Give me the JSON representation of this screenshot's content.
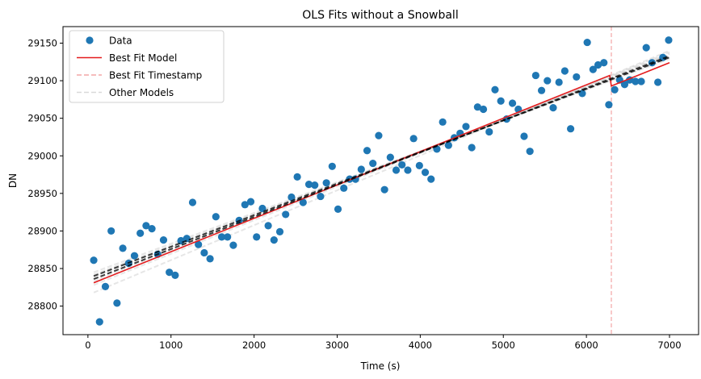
{
  "chart_data": {
    "type": "scatter",
    "title": "OLS Fits without a Snowball",
    "xlabel": "Time (s)",
    "ylabel": "DN",
    "xlim": [
      -300,
      7350
    ],
    "ylim": [
      28762,
      29172
    ],
    "xticks": [
      0,
      1000,
      2000,
      3000,
      4000,
      5000,
      6000,
      7000
    ],
    "yticks": [
      28800,
      28850,
      28900,
      28950,
      29000,
      29050,
      29100,
      29150
    ],
    "grid": false,
    "legend_position": "top-left",
    "legend": [
      {
        "label": "Data",
        "style": "marker",
        "color": "#1f77b4"
      },
      {
        "label": "Best Fit Model",
        "style": "solid",
        "color": "#e41a1c"
      },
      {
        "label": "Best Fit Timestamp",
        "style": "dashed",
        "color": "#f4a6a6"
      },
      {
        "label": "Other Models",
        "style": "dashed",
        "color": "#d9d9d9"
      }
    ],
    "series": [
      {
        "name": "Data",
        "kind": "scatter",
        "color": "#1f77b4",
        "points": [
          [
            70,
            28861
          ],
          [
            140,
            28779
          ],
          [
            210,
            28826
          ],
          [
            280,
            28900
          ],
          [
            350,
            28804
          ],
          [
            420,
            28877
          ],
          [
            490,
            28857
          ],
          [
            560,
            28867
          ],
          [
            630,
            28897
          ],
          [
            700,
            28907
          ],
          [
            770,
            28903
          ],
          [
            840,
            28869
          ],
          [
            910,
            28888
          ],
          [
            980,
            28845
          ],
          [
            1050,
            28841
          ],
          [
            1120,
            28887
          ],
          [
            1190,
            28890
          ],
          [
            1260,
            28938
          ],
          [
            1330,
            28882
          ],
          [
            1400,
            28871
          ],
          [
            1470,
            28863
          ],
          [
            1540,
            28919
          ],
          [
            1610,
            28892
          ],
          [
            1680,
            28892
          ],
          [
            1750,
            28881
          ],
          [
            1820,
            28914
          ],
          [
            1890,
            28935
          ],
          [
            1960,
            28939
          ],
          [
            2030,
            28892
          ],
          [
            2100,
            28930
          ],
          [
            2170,
            28907
          ],
          [
            2240,
            28888
          ],
          [
            2310,
            28899
          ],
          [
            2380,
            28922
          ],
          [
            2450,
            28945
          ],
          [
            2520,
            28972
          ],
          [
            2590,
            28938
          ],
          [
            2660,
            28962
          ],
          [
            2730,
            28961
          ],
          [
            2800,
            28946
          ],
          [
            2870,
            28964
          ],
          [
            2940,
            28986
          ],
          [
            3010,
            28929
          ],
          [
            3080,
            28957
          ],
          [
            3150,
            28969
          ],
          [
            3220,
            28969
          ],
          [
            3290,
            28982
          ],
          [
            3360,
            29007
          ],
          [
            3430,
            28990
          ],
          [
            3500,
            29027
          ],
          [
            3570,
            28955
          ],
          [
            3640,
            28998
          ],
          [
            3710,
            28981
          ],
          [
            3780,
            28988
          ],
          [
            3850,
            28981
          ],
          [
            3920,
            29023
          ],
          [
            3990,
            28987
          ],
          [
            4060,
            28978
          ],
          [
            4130,
            28969
          ],
          [
            4200,
            29009
          ],
          [
            4270,
            29045
          ],
          [
            4340,
            29014
          ],
          [
            4410,
            29024
          ],
          [
            4480,
            29030
          ],
          [
            4550,
            29039
          ],
          [
            4620,
            29011
          ],
          [
            4690,
            29065
          ],
          [
            4760,
            29062
          ],
          [
            4830,
            29032
          ],
          [
            4900,
            29088
          ],
          [
            4970,
            29073
          ],
          [
            5040,
            29049
          ],
          [
            5110,
            29070
          ],
          [
            5180,
            29062
          ],
          [
            5250,
            29026
          ],
          [
            5320,
            29006
          ],
          [
            5390,
            29107
          ],
          [
            5460,
            29087
          ],
          [
            5530,
            29100
          ],
          [
            5600,
            29064
          ],
          [
            5670,
            29098
          ],
          [
            5740,
            29113
          ],
          [
            5810,
            29036
          ],
          [
            5880,
            29105
          ],
          [
            5950,
            29083
          ],
          [
            6010,
            29151
          ],
          [
            6080,
            29115
          ],
          [
            6140,
            29121
          ],
          [
            6210,
            29124
          ],
          [
            6270,
            29068
          ],
          [
            6340,
            29088
          ],
          [
            6400,
            29101
          ],
          [
            6460,
            29095
          ],
          [
            6520,
            29101
          ],
          [
            6590,
            29099
          ],
          [
            6660,
            29099
          ],
          [
            6720,
            29144
          ],
          [
            6790,
            29124
          ],
          [
            6860,
            29098
          ],
          [
            6920,
            29131
          ],
          [
            6990,
            29154
          ]
        ]
      },
      {
        "name": "Best Fit Model",
        "kind": "line",
        "color": "#e41a1c",
        "points": [
          [
            70,
            28831
          ],
          [
            6280,
            29107
          ],
          [
            6300,
            29093
          ],
          [
            7000,
            29124
          ]
        ]
      },
      {
        "name": "Best Fit Timestamp",
        "kind": "vline",
        "color": "#f4a6a6",
        "x": 6300
      },
      {
        "name": "Other Models",
        "kind": "lines",
        "color": "#c8c8c8",
        "lines": [
          [
            [
              70,
              28818
            ],
            [
              7000,
              29140
            ]
          ],
          [
            [
              70,
              28828
            ],
            [
              7000,
              29138
            ]
          ],
          [
            [
              70,
              28833
            ],
            [
              7000,
              29136
            ]
          ],
          [
            [
              70,
              28836
            ],
            [
              7000,
              29135
            ]
          ],
          [
            [
              70,
              28839
            ],
            [
              7000,
              29133
            ]
          ],
          [
            [
              70,
              28842
            ],
            [
              7000,
              29131
            ]
          ],
          [
            [
              70,
              28845
            ],
            [
              7000,
              29129
            ]
          ]
        ]
      },
      {
        "kind": "line",
        "color": "#000000",
        "dashed": true,
        "points": [
          [
            70,
            28836
          ],
          [
            7000,
            29133
          ]
        ]
      },
      {
        "kind": "line",
        "color": "#000000",
        "dashed": true,
        "points": [
          [
            70,
            28840
          ],
          [
            7000,
            29131
          ]
        ]
      }
    ]
  }
}
